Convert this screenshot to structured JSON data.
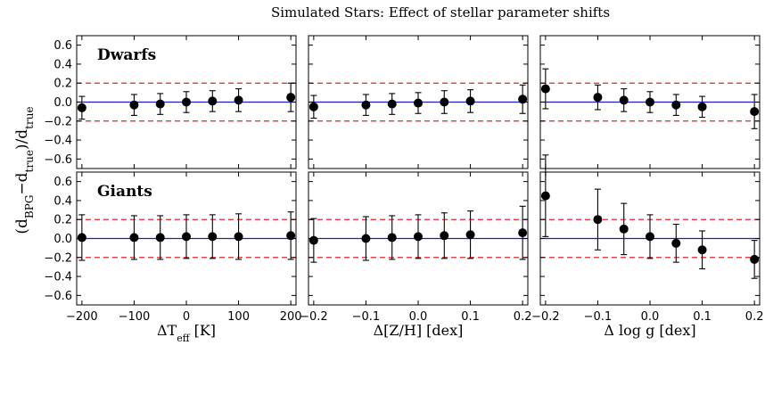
{
  "title": "Simulated Stars: Effect of stellar parameter shifts",
  "ylabel": "(d_BPG−d_true)/d_true",
  "colors": {
    "zero_line": "#1f1fbf",
    "threshold_line": "#e8262b",
    "points": "#000000"
  },
  "chart_data": [
    {
      "type": "scatter",
      "panel": "dwarfs-teff",
      "label": "Dwarfs",
      "xlabel": "ΔT_eff [K]",
      "xlim": [
        -210,
        210
      ],
      "ylim": [
        -0.7,
        0.7
      ],
      "xticks": [
        -200,
        -100,
        0,
        100,
        200
      ],
      "xticklabels": [
        "−200",
        "−100",
        "0",
        "100",
        "200"
      ],
      "yticks": [
        -0.6,
        -0.4,
        -0.2,
        0.0,
        0.2,
        0.4,
        0.6
      ],
      "yticklabels": [
        "−0.6",
        "−0.4",
        "−0.2",
        "0.0",
        "0.2",
        "0.4",
        "0.6"
      ],
      "hlines": [
        {
          "y": 0.0,
          "style": "solid"
        },
        {
          "y": 0.2,
          "style": "dashed"
        },
        {
          "y": -0.2,
          "style": "dashed"
        }
      ],
      "points": [
        {
          "x": -200,
          "y": -0.06,
          "err": 0.12
        },
        {
          "x": -100,
          "y": -0.03,
          "err": 0.11
        },
        {
          "x": -50,
          "y": -0.02,
          "err": 0.11
        },
        {
          "x": 0,
          "y": 0.0,
          "err": 0.11
        },
        {
          "x": 50,
          "y": 0.01,
          "err": 0.11
        },
        {
          "x": 100,
          "y": 0.02,
          "err": 0.12
        },
        {
          "x": 200,
          "y": 0.05,
          "err": 0.15
        }
      ]
    },
    {
      "type": "scatter",
      "panel": "dwarfs-feh",
      "label": "",
      "xlabel": "Δ[Z/H] [dex]",
      "xlim": [
        -0.21,
        0.21
      ],
      "ylim": [
        -0.7,
        0.7
      ],
      "xticks": [
        -0.2,
        -0.1,
        0.0,
        0.1,
        0.2
      ],
      "xticklabels": [
        "−0.2",
        "−0.1",
        "0.0",
        "0.1",
        "0.2"
      ],
      "yticks": [
        -0.6,
        -0.4,
        -0.2,
        0.0,
        0.2,
        0.4,
        0.6
      ],
      "yticklabels": [],
      "hlines": [
        {
          "y": 0.0,
          "style": "solid"
        },
        {
          "y": 0.2,
          "style": "dashed"
        },
        {
          "y": -0.2,
          "style": "dashed"
        }
      ],
      "points": [
        {
          "x": -0.2,
          "y": -0.05,
          "err": 0.12
        },
        {
          "x": -0.1,
          "y": -0.03,
          "err": 0.11
        },
        {
          "x": -0.05,
          "y": -0.02,
          "err": 0.11
        },
        {
          "x": 0.0,
          "y": -0.01,
          "err": 0.11
        },
        {
          "x": 0.05,
          "y": 0.0,
          "err": 0.12
        },
        {
          "x": 0.1,
          "y": 0.01,
          "err": 0.12
        },
        {
          "x": 0.2,
          "y": 0.03,
          "err": 0.15
        }
      ]
    },
    {
      "type": "scatter",
      "panel": "dwarfs-logg",
      "label": "",
      "xlabel": "Δ log g [dex]",
      "xlim": [
        -0.21,
        0.21
      ],
      "ylim": [
        -0.7,
        0.7
      ],
      "xticks": [
        -0.2,
        -0.1,
        0.0,
        0.1,
        0.2
      ],
      "xticklabels": [
        "−0.2",
        "−0.1",
        "0.0",
        "0.1",
        "0.2"
      ],
      "yticks": [
        -0.6,
        -0.4,
        -0.2,
        0.0,
        0.2,
        0.4,
        0.6
      ],
      "yticklabels": [],
      "hlines": [
        {
          "y": 0.0,
          "style": "solid"
        },
        {
          "y": 0.2,
          "style": "dashed"
        },
        {
          "y": -0.2,
          "style": "dashed"
        }
      ],
      "points": [
        {
          "x": -0.2,
          "y": 0.14,
          "err": 0.21
        },
        {
          "x": -0.1,
          "y": 0.05,
          "err": 0.13
        },
        {
          "x": -0.05,
          "y": 0.02,
          "err": 0.12
        },
        {
          "x": 0.0,
          "y": 0.0,
          "err": 0.11
        },
        {
          "x": 0.05,
          "y": -0.03,
          "err": 0.11
        },
        {
          "x": 0.1,
          "y": -0.05,
          "err": 0.11
        },
        {
          "x": 0.2,
          "y": -0.1,
          "err": 0.18
        }
      ]
    },
    {
      "type": "scatter",
      "panel": "giants-teff",
      "label": "Giants",
      "xlabel": "ΔT_eff [K]",
      "xlim": [
        -210,
        210
      ],
      "ylim": [
        -0.7,
        0.7
      ],
      "xticks": [
        -200,
        -100,
        0,
        100,
        200
      ],
      "xticklabels": [
        "−200",
        "−100",
        "0",
        "100",
        "200"
      ],
      "yticks": [
        -0.6,
        -0.4,
        -0.2,
        0.0,
        0.2,
        0.4,
        0.6
      ],
      "yticklabels": [
        "−0.6",
        "−0.4",
        "−0.2",
        "0.0",
        "0.2",
        "0.4",
        "0.6"
      ],
      "hlines": [
        {
          "y": 0.0,
          "style": "solid"
        },
        {
          "y": 0.2,
          "style": "dashed"
        },
        {
          "y": -0.2,
          "style": "dashed"
        }
      ],
      "points": [
        {
          "x": -200,
          "y": 0.01,
          "err": 0.24
        },
        {
          "x": -100,
          "y": 0.01,
          "err": 0.23
        },
        {
          "x": -50,
          "y": 0.01,
          "err": 0.23
        },
        {
          "x": 0,
          "y": 0.02,
          "err": 0.23
        },
        {
          "x": 50,
          "y": 0.02,
          "err": 0.23
        },
        {
          "x": 100,
          "y": 0.02,
          "err": 0.24
        },
        {
          "x": 200,
          "y": 0.03,
          "err": 0.25
        }
      ]
    },
    {
      "type": "scatter",
      "panel": "giants-feh",
      "label": "",
      "xlabel": "Δ[Z/H] [dex]",
      "xlim": [
        -0.21,
        0.21
      ],
      "ylim": [
        -0.7,
        0.7
      ],
      "xticks": [
        -0.2,
        -0.1,
        0.0,
        0.1,
        0.2
      ],
      "xticklabels": [
        "−0.2",
        "−0.1",
        "0.0",
        "0.1",
        "0.2"
      ],
      "yticks": [
        -0.6,
        -0.4,
        -0.2,
        0.0,
        0.2,
        0.4,
        0.6
      ],
      "yticklabels": [],
      "hlines": [
        {
          "y": 0.0,
          "style": "solid"
        },
        {
          "y": 0.2,
          "style": "dashed"
        },
        {
          "y": -0.2,
          "style": "dashed"
        }
      ],
      "points": [
        {
          "x": -0.2,
          "y": -0.02,
          "err": 0.23
        },
        {
          "x": -0.1,
          "y": 0.0,
          "err": 0.23
        },
        {
          "x": -0.05,
          "y": 0.01,
          "err": 0.23
        },
        {
          "x": 0.0,
          "y": 0.02,
          "err": 0.23
        },
        {
          "x": 0.05,
          "y": 0.03,
          "err": 0.24
        },
        {
          "x": 0.1,
          "y": 0.04,
          "err": 0.25
        },
        {
          "x": 0.2,
          "y": 0.06,
          "err": 0.28
        }
      ]
    },
    {
      "type": "scatter",
      "panel": "giants-logg",
      "label": "",
      "xlabel": "Δ log g [dex]",
      "xlim": [
        -0.21,
        0.21
      ],
      "ylim": [
        -0.7,
        0.7
      ],
      "xticks": [
        -0.2,
        -0.1,
        0.0,
        0.1,
        0.2
      ],
      "xticklabels": [
        "−0.2",
        "−0.1",
        "0.0",
        "0.1",
        "0.2"
      ],
      "yticks": [
        -0.6,
        -0.4,
        -0.2,
        0.0,
        0.2,
        0.4,
        0.6
      ],
      "yticklabels": [],
      "hlines": [
        {
          "y": 0.0,
          "style": "solid"
        },
        {
          "y": 0.2,
          "style": "dashed"
        },
        {
          "y": -0.2,
          "style": "dashed"
        }
      ],
      "points": [
        {
          "x": -0.2,
          "y": 0.45,
          "err": 0.43
        },
        {
          "x": -0.1,
          "y": 0.2,
          "err": 0.32
        },
        {
          "x": -0.05,
          "y": 0.1,
          "err": 0.27
        },
        {
          "x": 0.0,
          "y": 0.02,
          "err": 0.23
        },
        {
          "x": 0.05,
          "y": -0.05,
          "err": 0.2
        },
        {
          "x": 0.1,
          "y": -0.12,
          "err": 0.2
        },
        {
          "x": 0.2,
          "y": -0.22,
          "err": 0.2
        }
      ]
    }
  ]
}
